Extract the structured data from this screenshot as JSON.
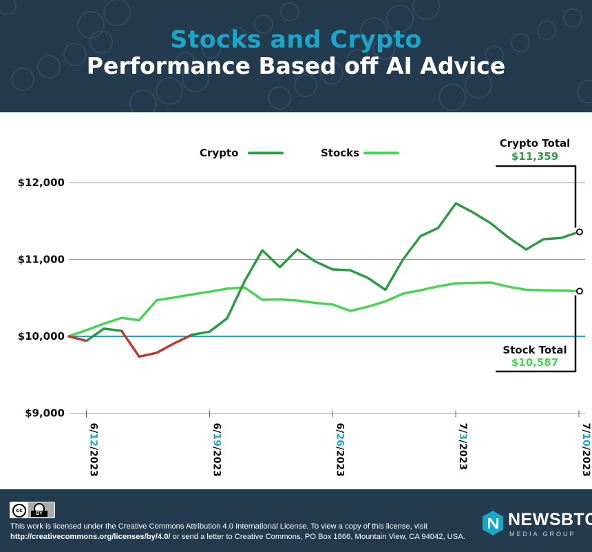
{
  "header": {
    "title_line1": "Stocks and Crypto",
    "title_line2": "Performance Based off AI Advice",
    "background_color": "#243a4f",
    "title_accent_color": "#1aa6c8"
  },
  "chart_data": {
    "type": "line",
    "title": "Stocks and Crypto Performance Based off AI Advice",
    "ylim": [
      9000,
      12300
    ],
    "yticks": [
      9000,
      10000,
      11000,
      12000
    ],
    "ytick_labels": [
      "$9,000",
      "$10,000",
      "$11,000",
      "$12,000"
    ],
    "baseline": 10000,
    "baseline_color": "#1aa6c8",
    "grid": true,
    "legend_position": "top-center",
    "x_tick_labels": [
      {
        "pre": "6/",
        "hl": "12",
        "post": "/2023",
        "index": 1
      },
      {
        "pre": "6/",
        "hl": "19",
        "post": "/2023",
        "index": 8
      },
      {
        "pre": "6/",
        "hl": "26",
        "post": "/2023",
        "index": 15
      },
      {
        "pre": "7/",
        "hl": "3",
        "post": "/2023",
        "index": 22
      },
      {
        "pre": "7/",
        "hl": "10",
        "post": "/2023",
        "index": 29
      }
    ],
    "x": [
      "6/11/2023",
      "6/12/2023",
      "6/13/2023",
      "6/14/2023",
      "6/15/2023",
      "6/16/2023",
      "6/17/2023",
      "6/18/2023",
      "6/19/2023",
      "6/20/2023",
      "6/21/2023",
      "6/22/2023",
      "6/23/2023",
      "6/24/2023",
      "6/25/2023",
      "6/26/2023",
      "6/27/2023",
      "6/28/2023",
      "6/29/2023",
      "6/30/2023",
      "7/1/2023",
      "7/2/2023",
      "7/3/2023",
      "7/4/2023",
      "7/5/2023",
      "7/6/2023",
      "7/7/2023",
      "7/8/2023",
      "7/9/2023",
      "7/10/2023"
    ],
    "series": [
      {
        "name": "Crypto",
        "color": "#2e9a44",
        "loss_color": "#c0392b",
        "values": [
          10000,
          9940,
          10100,
          10070,
          9735,
          9785,
          9910,
          10020,
          10060,
          10235,
          10720,
          11120,
          10900,
          11130,
          10975,
          10870,
          10860,
          10760,
          10605,
          11000,
          11305,
          11410,
          11730,
          11610,
          11470,
          11285,
          11130,
          11265,
          11280,
          11359
        ]
      },
      {
        "name": "Stocks",
        "color": "#49d352",
        "values": [
          10000,
          10080,
          10165,
          10240,
          10210,
          10470,
          10505,
          10545,
          10580,
          10620,
          10635,
          10475,
          10480,
          10465,
          10435,
          10415,
          10330,
          10385,
          10455,
          10555,
          10600,
          10650,
          10690,
          10695,
          10700,
          10645,
          10605,
          10600,
          10595,
          10587
        ]
      }
    ],
    "annotations": [
      {
        "label": "Crypto Total",
        "value": "$11,359"
      },
      {
        "label": "Stock Total",
        "value": "$10,587"
      }
    ]
  },
  "footer": {
    "cc_label": "cc",
    "by_label": "BY",
    "license_text_1": "This work is licensed under the Creative Commons Attribution 4.0 International License. To view a copy of this license, visit",
    "license_link": "http://creativecommons.org/licenses/by/4.0/",
    "license_text_2": " or send a letter to Creative Commons, PO Box 1866, Mountain View, CA 94042, USA.",
    "brand_name": "NEWSBTC",
    "brand_sub": "MEDIA GROUP"
  }
}
